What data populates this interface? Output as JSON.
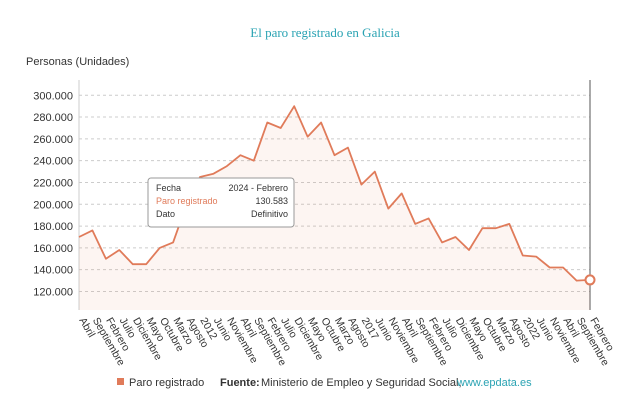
{
  "chart_data": {
    "type": "line",
    "title": "El paro registrado en Galicia",
    "y_axis_title": "Personas (Unidades)",
    "categories": [
      "Abril",
      "Septiembre",
      "Febrero",
      "Julio",
      "Diciembre",
      "Mayo",
      "Octubre",
      "Marzo",
      "Agosto",
      "2012",
      "Junio",
      "Noviembre",
      "Abril",
      "Septiembre",
      "Febrero",
      "Julio",
      "Diciembre",
      "Mayo",
      "Octubre",
      "Marzo",
      "Agosto",
      "2017",
      "Junio",
      "Noviembre",
      "Abril",
      "Septiembre",
      "Febrero",
      "Julio",
      "Diciembre",
      "Mayo",
      "Octubre",
      "Marzo",
      "Agosto",
      "2022",
      "Junio",
      "Noviembre",
      "Abril",
      "Septiembre",
      "Febrero"
    ],
    "series": [
      {
        "name": "Paro registrado",
        "color": "#e07b5a",
        "values": [
          170000,
          176000,
          150000,
          158000,
          145000,
          145000,
          160000,
          165000,
          200000,
          225000,
          228000,
          235000,
          245000,
          240000,
          275000,
          270000,
          290000,
          262000,
          275000,
          245000,
          252000,
          218000,
          230000,
          196000,
          210000,
          182000,
          187000,
          165000,
          170000,
          158000,
          178000,
          178000,
          182000,
          153000,
          152000,
          142000,
          142000,
          130000,
          130583
        ]
      }
    ],
    "ylim": [
      103000,
      314000
    ],
    "yticks": [
      {
        "value": 120000,
        "label": "120.000"
      },
      {
        "value": 140000,
        "label": "140.000"
      },
      {
        "value": 160000,
        "label": "160.000"
      },
      {
        "value": 180000,
        "label": "180.000"
      },
      {
        "value": 200000,
        "label": "200.000"
      },
      {
        "value": 220000,
        "label": "220.000"
      },
      {
        "value": 240000,
        "label": "240.000"
      },
      {
        "value": 260000,
        "label": "260.000"
      },
      {
        "value": 280000,
        "label": "280.000"
      },
      {
        "value": 300000,
        "label": "300.000"
      }
    ],
    "grid": true,
    "tooltip": {
      "rows": [
        [
          "Fecha",
          "2024 - Febrero"
        ],
        [
          "Paro registrado",
          "130.583"
        ],
        [
          "Dato",
          "Definitivo"
        ]
      ]
    },
    "source_label": "Fuente:",
    "source": "Ministerio de Empleo y Seguridad Social,",
    "source_link": "www.epdata.es"
  }
}
